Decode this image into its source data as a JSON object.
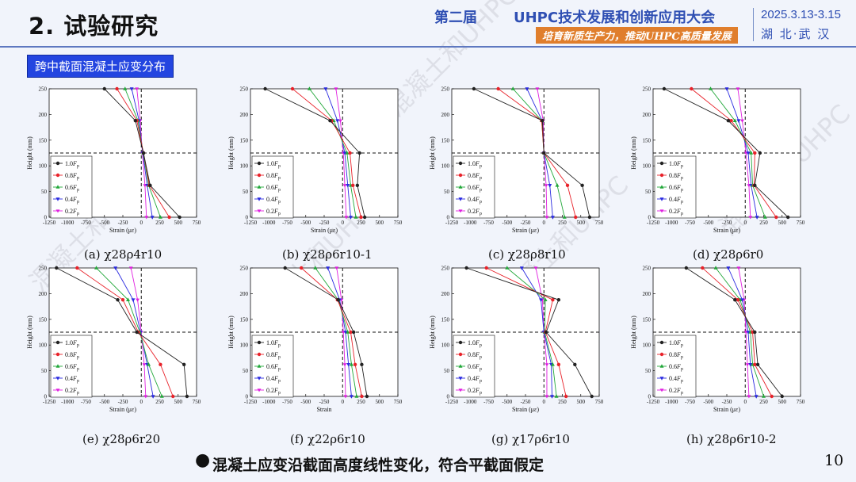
{
  "header": {
    "title": "2. 试验研究",
    "session": "第二届",
    "conference": "UHPC技术发展和创新应用大会",
    "slogan": "培育新质生产力，推动UHPC高质量发展",
    "date": "2025.3.13-3.15",
    "city": "湖 北·武 汉"
  },
  "section_tag": "跨中截面混凝土应变分布",
  "footer": {
    "bullet": "●",
    "text": "混凝土应变沿截面高度线性变化，符合平截面假定"
  },
  "page_number": "10",
  "watermark": "混凝土和UHPC",
  "colors": {
    "1.0Fp": "#222222",
    "0.8Fp": "#e8222a",
    "0.6Fp": "#22a83a",
    "0.4Fp": "#2a2ae0",
    "0.2Fp": "#e020e0",
    "tag_bg": "#2345e0"
  },
  "chart_data": [
    {
      "type": "line",
      "caption": "(a) χ28ρ4r10",
      "xlabel": "Strain (με)",
      "ylabel": "Height (mm)",
      "xlim": [
        -1250,
        750
      ],
      "ylim": [
        0,
        250
      ],
      "xticks": [
        "-1250",
        "-1000",
        "-750",
        "-500",
        "-250",
        "0",
        "250",
        "500",
        "750"
      ],
      "yticks": [
        "0",
        "50",
        "100",
        "150",
        "200",
        "250"
      ],
      "legend": "left",
      "y": [
        0,
        62,
        125,
        188,
        250
      ],
      "series": [
        {
          "name": "1.0Fp",
          "x": [
            520,
            120,
            30,
            -80,
            -500
          ]
        },
        {
          "name": "0.8Fp",
          "x": [
            380,
            110,
            30,
            -60,
            -330
          ]
        },
        {
          "name": "0.6Fp",
          "x": [
            260,
            100,
            25,
            -45,
            -220
          ]
        },
        {
          "name": "0.4Fp",
          "x": [
            150,
            80,
            20,
            -30,
            -130
          ]
        },
        {
          "name": "0.2Fp",
          "x": [
            70,
            50,
            15,
            -15,
            -60
          ]
        }
      ]
    },
    {
      "type": "line",
      "caption": "(b) χ28ρ6r10-1",
      "xlabel": "Strain (με)",
      "ylabel": "Height (mm)",
      "xlim": [
        -1250,
        750
      ],
      "ylim": [
        0,
        250
      ],
      "xticks": [
        "-1250",
        "-1000",
        "-750",
        "-500",
        "-250",
        "0",
        "250",
        "500",
        "750"
      ],
      "yticks": [
        "0",
        "50",
        "100",
        "150",
        "200",
        "250"
      ],
      "legend": "left",
      "y": [
        0,
        62,
        125,
        188,
        250
      ],
      "series": [
        {
          "name": "1.0Fp",
          "x": [
            300,
            200,
            230,
            -170,
            -1050
          ]
        },
        {
          "name": "0.8Fp",
          "x": [
            250,
            140,
            100,
            -150,
            -680
          ]
        },
        {
          "name": "0.6Fp",
          "x": [
            180,
            110,
            60,
            -120,
            -450
          ]
        },
        {
          "name": "0.4Fp",
          "x": [
            110,
            70,
            30,
            -70,
            -230
          ]
        },
        {
          "name": "0.2Fp",
          "x": [
            50,
            30,
            10,
            -30,
            -90
          ]
        }
      ]
    },
    {
      "type": "line",
      "caption": "(c) χ28ρ8r10",
      "xlabel": "Strain (με)",
      "ylabel": "Height (mm)",
      "xlim": [
        -1250,
        750
      ],
      "ylim": [
        0,
        250
      ],
      "xticks": [
        "-1250",
        "-1000",
        "-750",
        "-500",
        "-250",
        "0",
        "250",
        "500",
        "750"
      ],
      "yticks": [
        "0",
        "50",
        "100",
        "150",
        "200",
        "250"
      ],
      "legend": "left",
      "y": [
        0,
        62,
        125,
        188,
        250
      ],
      "series": [
        {
          "name": "1.0Fp",
          "x": [
            620,
            520,
            0,
            -20,
            -950
          ]
        },
        {
          "name": "0.8Fp",
          "x": [
            430,
            320,
            0,
            -30,
            -620
          ]
        },
        {
          "name": "0.6Fp",
          "x": [
            280,
            180,
            0,
            -30,
            -420
          ]
        },
        {
          "name": "0.4Fp",
          "x": [
            120,
            80,
            0,
            -25,
            -230
          ]
        },
        {
          "name": "0.2Fp",
          "x": [
            40,
            30,
            0,
            -10,
            -90
          ]
        }
      ]
    },
    {
      "type": "line",
      "caption": "(d) χ28ρ6r0",
      "xlabel": "Strain (με)",
      "ylabel": "Height (mm)",
      "xlim": [
        -1250,
        750
      ],
      "ylim": [
        0,
        250
      ],
      "xticks": [
        "-1250",
        "-1000",
        "-750",
        "-500",
        "-250",
        "0",
        "250",
        "500",
        "750"
      ],
      "yticks": [
        "0",
        "50",
        "100",
        "150",
        "200",
        "250"
      ],
      "legend": "left",
      "y": [
        0,
        62,
        125,
        188,
        250
      ],
      "series": [
        {
          "name": "1.0Fp",
          "x": [
            580,
            130,
            200,
            -230,
            -1100
          ]
        },
        {
          "name": "0.8Fp",
          "x": [
            420,
            120,
            130,
            -190,
            -730
          ]
        },
        {
          "name": "0.6Fp",
          "x": [
            270,
            100,
            80,
            -140,
            -470
          ]
        },
        {
          "name": "0.4Fp",
          "x": [
            160,
            80,
            40,
            -90,
            -250
          ]
        },
        {
          "name": "0.2Fp",
          "x": [
            70,
            50,
            10,
            -40,
            -100
          ]
        }
      ]
    },
    {
      "type": "line",
      "caption": "(e) χ28ρ6r20",
      "xlabel": "Strain (με)",
      "ylabel": "Height (mm)",
      "xlim": [
        -1250,
        750
      ],
      "ylim": [
        0,
        250
      ],
      "xticks": [
        "-1250",
        "-1000",
        "-750",
        "-500",
        "-250",
        "0",
        "250",
        "500",
        "750"
      ],
      "yticks": [
        "0",
        "50",
        "100",
        "150",
        "200",
        "250"
      ],
      "legend": "left",
      "y": [
        0,
        62,
        125,
        188,
        250
      ],
      "series": [
        {
          "name": "1.0Fp",
          "x": [
            620,
            580,
            -60,
            -320,
            -1150
          ]
        },
        {
          "name": "0.8Fp",
          "x": [
            430,
            260,
            -40,
            -250,
            -870
          ]
        },
        {
          "name": "0.6Fp",
          "x": [
            280,
            100,
            -20,
            -180,
            -610
          ]
        },
        {
          "name": "0.4Fp",
          "x": [
            160,
            80,
            -10,
            -110,
            -350
          ]
        },
        {
          "name": "0.2Fp",
          "x": [
            60,
            40,
            0,
            -50,
            -140
          ]
        }
      ]
    },
    {
      "type": "line",
      "caption": "(f) χ22ρ6r10",
      "xlabel": "Strain",
      "ylabel": "Height (mm)",
      "xlim": [
        -1250,
        750
      ],
      "ylim": [
        0,
        250
      ],
      "xticks": [
        "-1250",
        "-1000",
        "-750",
        "-500",
        "-250",
        "0",
        "250",
        "500",
        "750"
      ],
      "yticks": [
        "0",
        "50",
        "100",
        "150",
        "200",
        "250"
      ],
      "legend": "left",
      "y": [
        0,
        62,
        125,
        188,
        250
      ],
      "series": [
        {
          "name": "1.0Fp",
          "x": [
            330,
            260,
            150,
            -60,
            -780
          ]
        },
        {
          "name": "0.8Fp",
          "x": [
            260,
            170,
            110,
            -70,
            -560
          ]
        },
        {
          "name": "0.6Fp",
          "x": [
            190,
            120,
            70,
            -60,
            -370
          ]
        },
        {
          "name": "0.4Fp",
          "x": [
            120,
            80,
            40,
            -40,
            -200
          ]
        },
        {
          "name": "0.2Fp",
          "x": [
            40,
            30,
            10,
            -15,
            -80
          ]
        }
      ]
    },
    {
      "type": "line",
      "caption": "(g) χ17ρ6r10",
      "xlabel": "Strain (με)",
      "ylabel": "Height (mm)",
      "xlim": [
        -1250,
        750
      ],
      "ylim": [
        0,
        250
      ],
      "xticks": [
        "-1250",
        "-1000",
        "-750",
        "-500",
        "-250",
        "0",
        "250",
        "500",
        "750"
      ],
      "yticks": [
        "0",
        "50",
        "100",
        "150",
        "200",
        "250"
      ],
      "legend": "left",
      "y": [
        0,
        62,
        125,
        188,
        250
      ],
      "series": [
        {
          "name": "1.0Fp",
          "x": [
            650,
            420,
            30,
            200,
            -1050
          ]
        },
        {
          "name": "0.8Fp",
          "x": [
            300,
            200,
            20,
            120,
            -780
          ]
        },
        {
          "name": "0.6Fp",
          "x": [
            170,
            120,
            10,
            20,
            -500
          ]
        },
        {
          "name": "0.4Fp",
          "x": [
            110,
            100,
            0,
            -40,
            -300
          ]
        },
        {
          "name": "0.2Fp",
          "x": [
            40,
            40,
            0,
            -20,
            -110
          ]
        }
      ]
    },
    {
      "type": "line",
      "caption": "(h) χ28ρ6r10-2",
      "xlabel": "Strain (με)",
      "ylabel": "Height (mm)",
      "xlim": [
        -1250,
        750
      ],
      "ylim": [
        0,
        250
      ],
      "xticks": [
        "-1250",
        "-1000",
        "-750",
        "-500",
        "-250",
        "0",
        "250",
        "500",
        "750"
      ],
      "yticks": [
        "0",
        "50",
        "100",
        "150",
        "200",
        "250"
      ],
      "legend": "left",
      "y": [
        0,
        62,
        125,
        188,
        250
      ],
      "series": [
        {
          "name": "1.0Fp",
          "x": [
            500,
            170,
            130,
            -140,
            -800
          ]
        },
        {
          "name": "0.8Fp",
          "x": [
            360,
            130,
            100,
            -100,
            -580
          ]
        },
        {
          "name": "0.6Fp",
          "x": [
            250,
            100,
            70,
            -70,
            -400
          ]
        },
        {
          "name": "0.4Fp",
          "x": [
            150,
            70,
            40,
            -40,
            -230
          ]
        },
        {
          "name": "0.2Fp",
          "x": [
            50,
            30,
            10,
            -15,
            -90
          ]
        }
      ]
    }
  ]
}
